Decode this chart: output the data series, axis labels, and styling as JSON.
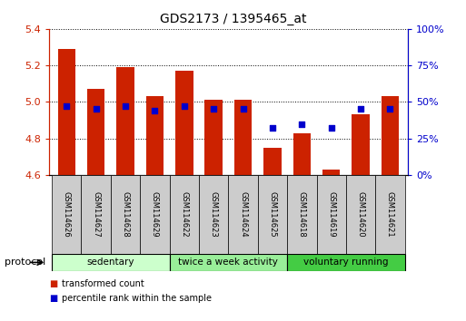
{
  "title": "GDS2173 / 1395465_at",
  "samples": [
    "GSM114626",
    "GSM114627",
    "GSM114628",
    "GSM114629",
    "GSM114622",
    "GSM114623",
    "GSM114624",
    "GSM114625",
    "GSM114618",
    "GSM114619",
    "GSM114620",
    "GSM114621"
  ],
  "bar_values": [
    5.29,
    5.07,
    5.19,
    5.03,
    5.17,
    5.01,
    5.01,
    4.75,
    4.83,
    4.63,
    4.93,
    5.03
  ],
  "bar_base": 4.6,
  "percentile_values": [
    47,
    45,
    47,
    44,
    47,
    45,
    45,
    32,
    35,
    32,
    45,
    45
  ],
  "ylim_left": [
    4.6,
    5.4
  ],
  "ylim_right": [
    0,
    100
  ],
  "yticks_left": [
    4.6,
    4.8,
    5.0,
    5.2,
    5.4
  ],
  "yticks_right": [
    0,
    25,
    50,
    75,
    100
  ],
  "ytick_labels_right": [
    "0%",
    "25%",
    "50%",
    "75%",
    "100%"
  ],
  "bar_color": "#cc2200",
  "dot_color": "#0000cc",
  "axis_left_color": "#cc2200",
  "axis_right_color": "#0000cc",
  "groups": [
    {
      "label": "sedentary",
      "start": 0,
      "end": 4,
      "color": "#ccffcc"
    },
    {
      "label": "twice a week activity",
      "start": 4,
      "end": 8,
      "color": "#99ee99"
    },
    {
      "label": "voluntary running",
      "start": 8,
      "end": 12,
      "color": "#44cc44"
    }
  ],
  "protocol_label": "protocol",
  "legend_items": [
    {
      "label": "transformed count",
      "color": "#cc2200"
    },
    {
      "label": "percentile rank within the sample",
      "color": "#0000cc"
    }
  ],
  "tick_bg_color": "#cccccc",
  "bar_width": 0.6
}
